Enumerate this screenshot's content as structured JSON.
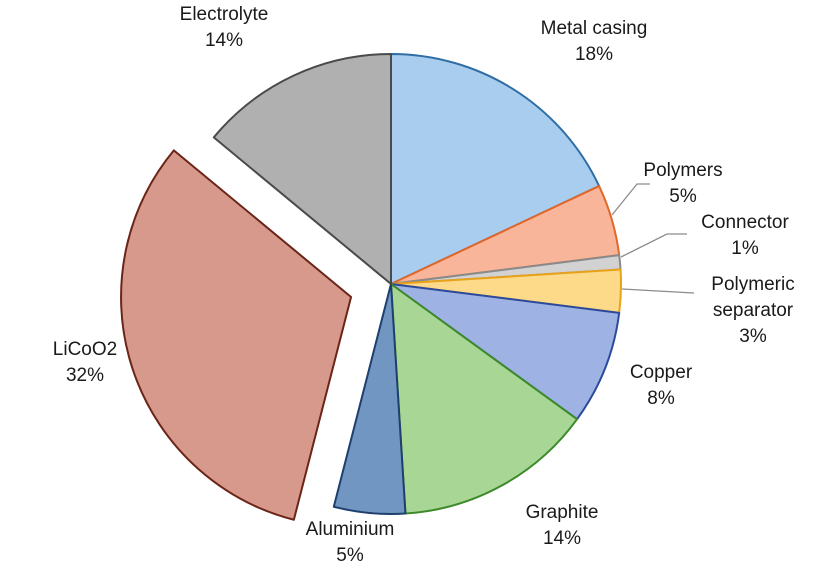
{
  "chart_data": {
    "type": "pie",
    "title": "",
    "legend": "none",
    "slices": [
      {
        "label": "Metal casing",
        "pct_label": "18%",
        "value": 18,
        "fill": "#a9cdee",
        "stroke": "#2f6ea5",
        "exploded": false
      },
      {
        "label": "Polymers",
        "pct_label": "5%",
        "value": 5,
        "fill": "#f9b59a",
        "stroke": "#e0672a",
        "exploded": false
      },
      {
        "label": "Connector",
        "pct_label": "1%",
        "value": 1,
        "fill": "#d2d2d2",
        "stroke": "#8a8a8a",
        "exploded": false
      },
      {
        "label": "Polymeric separator",
        "label_lines": [
          "Polymeric",
          "separator"
        ],
        "pct_label": "3%",
        "value": 3,
        "fill": "#fdd98a",
        "stroke": "#e8a21a",
        "exploded": false
      },
      {
        "label": "Copper",
        "pct_label": "8%",
        "value": 8,
        "fill": "#9eb2e3",
        "stroke": "#2c4a9b",
        "exploded": false
      },
      {
        "label": "Graphite",
        "pct_label": "14%",
        "value": 14,
        "fill": "#a8d694",
        "stroke": "#3d8a2a",
        "exploded": false
      },
      {
        "label": "Aluminium",
        "pct_label": "5%",
        "value": 5,
        "fill": "#7196c1",
        "stroke": "#1f3f6e",
        "exploded": false
      },
      {
        "label": "LiCoO2",
        "pct_label": "32%",
        "value": 32,
        "fill": "#d7998c",
        "stroke": "#6b2518",
        "exploded": true
      },
      {
        "label": "Electrolyte",
        "pct_label": "14%",
        "value": 14,
        "fill": "#b0b0b0",
        "stroke": "#4a4a4a",
        "exploded": false
      }
    ]
  }
}
